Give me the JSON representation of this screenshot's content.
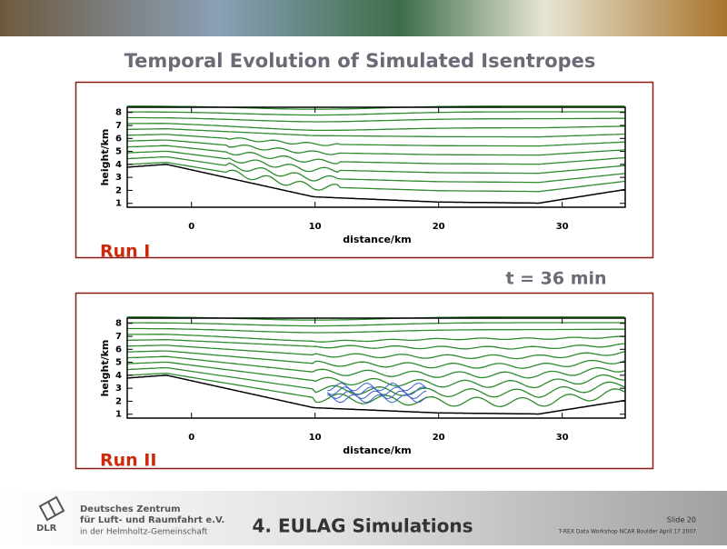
{
  "slide": {
    "title": "Temporal Evolution of Simulated Isentropes",
    "time_label": "t = 36 min",
    "panels": [
      {
        "label": "Run I",
        "x_label": "distance/km",
        "y_label": "height/km",
        "xlim": [
          -5.2,
          35.1
        ],
        "ylim": [
          0.7,
          8.4
        ],
        "xticks": [
          0,
          10,
          20,
          30
        ],
        "yticks": [
          1,
          2,
          3,
          4,
          5,
          6,
          7,
          8
        ]
      },
      {
        "label": "Run II",
        "x_label": "distance/km",
        "y_label": "height/km",
        "xlim": [
          -5.2,
          35.1
        ],
        "ylim": [
          0.7,
          8.4
        ],
        "xticks": [
          0,
          10,
          20,
          30
        ],
        "yticks": [
          1,
          2,
          3,
          4,
          5,
          6,
          7,
          8
        ]
      }
    ]
  },
  "footer": {
    "org_lines": [
      "Deutsches Zentrum",
      "für Luft- und Raumfahrt e.V.",
      "in der Helmholtz-Gemeinschaft"
    ],
    "logo": "DLR",
    "section": "4. EULAG Simulations",
    "slide_number": "Slide 20",
    "event": "T-REX Data Workshop NCAR Boulder April 17 2007"
  }
}
